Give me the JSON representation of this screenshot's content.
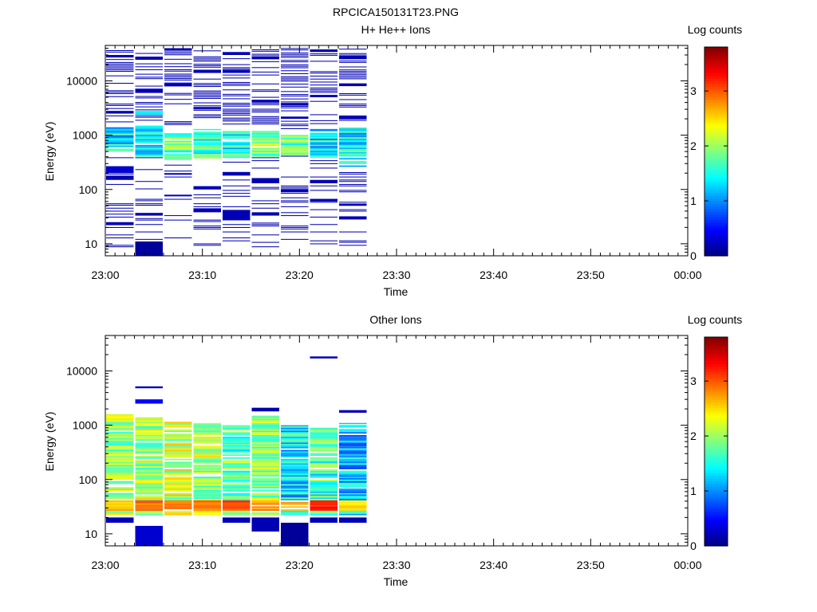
{
  "figure": {
    "title": "RPCICA150131T23.PNG"
  },
  "panels": [
    {
      "title": "H+ He++ Ions",
      "cbar_label": "Log counts"
    },
    {
      "title": "Other Ions",
      "cbar_label": "Log counts"
    }
  ],
  "chart_data": [
    {
      "type": "heatmap",
      "title": "H+ He++ Ions",
      "xlabel": "Time",
      "ylabel": "Energy (eV)",
      "x_tick_labels": [
        "23:00",
        "23:10",
        "23:20",
        "23:30",
        "23:40",
        "23:50",
        "00:00"
      ],
      "y_tick_labels": [
        "10",
        "100",
        "1000",
        "10000"
      ],
      "y_scale": "log",
      "ylim": [
        6,
        45000
      ],
      "colorbar": {
        "label": "Log counts",
        "range": [
          0,
          3.8
        ],
        "tick_labels": [
          "0",
          "1",
          "2",
          "3"
        ],
        "colormap": "jet"
      },
      "time_bins": [
        "23:00",
        "23:03",
        "23:06",
        "23:09",
        "23:12",
        "23:15",
        "23:18",
        "23:21",
        "23:24",
        "23:27"
      ],
      "columns": [
        {
          "core": [
            500,
            1400,
            1.3
          ],
          "bands": [
            [
              22,
              25,
              0.2
            ],
            [
              150,
              180,
              0.2
            ],
            [
              200,
              260,
              0.3
            ],
            [
              2500,
              2800,
              0.2
            ],
            [
              27000,
              30000,
              0.2
            ]
          ]
        },
        {
          "core": [
            400,
            1500,
            1.2
          ],
          "bands": [
            [
              6,
              11,
              0.1
            ],
            [
              33,
              37,
              0.2
            ],
            [
              2400,
              2800,
              1.4
            ],
            [
              6000,
              7000,
              0.2
            ],
            [
              25000,
              28000,
              0.2
            ]
          ]
        },
        {
          "core": [
            350,
            1100,
            1.8
          ],
          "bands": [
            [
              75,
              80,
              0.2
            ],
            [
              190,
              200,
              0.2
            ],
            [
              8000,
              9000,
              0.2
            ],
            [
              36000,
              40000,
              0.2
            ]
          ]
        },
        {
          "core": [
            350,
            1300,
            1.6
          ],
          "bands": [
            [
              38,
              45,
              0.2
            ],
            [
              100,
              115,
              0.2
            ],
            [
              3000,
              3200,
              0.2
            ],
            [
              14000,
              16000,
              0.2
            ]
          ]
        },
        {
          "core": [
            380,
            1200,
            1.5
          ],
          "bands": [
            [
              27,
              42,
              0.2
            ],
            [
              180,
              210,
              0.2
            ],
            [
              14000,
              16000,
              0.2
            ],
            [
              30000,
              34000,
              0.2
            ]
          ]
        },
        {
          "core": [
            400,
            1200,
            1.9
          ],
          "bands": [
            [
              33,
              38,
              0.2
            ],
            [
              130,
              160,
              0.2
            ],
            [
              4000,
              4500,
              0.2
            ],
            [
              25000,
              28000,
              0.2
            ]
          ]
        },
        {
          "core": [
            420,
            1050,
            1.7
          ],
          "bands": [
            [
              90,
              100,
              0.2
            ],
            [
              2000,
              2200,
              0.2
            ],
            [
              3500,
              3900,
              0.2
            ]
          ]
        },
        {
          "core": [
            380,
            1300,
            1.3
          ],
          "bands": [
            [
              60,
              65,
              0.2
            ],
            [
              130,
              150,
              0.2
            ],
            [
              5000,
              5500,
              0.2
            ],
            [
              34000,
              38000,
              0.2
            ]
          ]
        },
        {
          "core": [
            260,
            1400,
            1.4
          ],
          "bands": [
            [
              28,
              32,
              0.2
            ],
            [
              50,
              55,
              0.2
            ],
            [
              2000,
              2300,
              0.2
            ],
            [
              8000,
              9000,
              0.2
            ],
            [
              25000,
              29000,
              0.2
            ]
          ]
        }
      ]
    },
    {
      "type": "heatmap",
      "title": "Other Ions",
      "xlabel": "Time",
      "ylabel": "Energy (eV)",
      "x_tick_labels": [
        "23:00",
        "23:10",
        "23:20",
        "23:30",
        "23:40",
        "23:50",
        "00:00"
      ],
      "y_tick_labels": [
        "10",
        "100",
        "1000",
        "10000"
      ],
      "y_scale": "log",
      "ylim": [
        6,
        45000
      ],
      "colorbar": {
        "label": "Log counts",
        "range": [
          0,
          3.8
        ],
        "tick_labels": [
          "0",
          "1",
          "2",
          "3"
        ],
        "colormap": "jet"
      },
      "time_bins": [
        "23:00",
        "23:03",
        "23:06",
        "23:09",
        "23:12",
        "23:15",
        "23:18",
        "23:21",
        "23:24",
        "23:27"
      ],
      "columns": [
        {
          "core": [
            22,
            1600,
            2.0
          ],
          "peak": [
            25,
            40,
            2.8
          ],
          "bands": [
            [
              16,
              20,
              0.2
            ]
          ]
        },
        {
          "core": [
            22,
            1400,
            2.0
          ],
          "peak": [
            25,
            40,
            3.1
          ],
          "bands": [
            [
              6,
              14,
              0.3
            ],
            [
              2500,
              3000,
              0.5
            ],
            [
              4800,
              5200,
              0.2
            ]
          ]
        },
        {
          "core": [
            22,
            1300,
            2.1
          ],
          "peak": [
            25,
            40,
            3.0
          ],
          "bands": []
        },
        {
          "core": [
            22,
            1100,
            2.0
          ],
          "peak": [
            25,
            40,
            3.1
          ],
          "bands": []
        },
        {
          "core": [
            22,
            1000,
            1.7
          ],
          "peak": [
            25,
            40,
            3.3
          ],
          "bands": [
            [
              16,
              20,
              0.2
            ]
          ]
        },
        {
          "core": [
            22,
            1500,
            1.9
          ],
          "peak": [
            25,
            40,
            3.0
          ],
          "bands": [
            [
              11,
              20,
              0.2
            ],
            [
              1800,
              2100,
              0.2
            ]
          ]
        },
        {
          "core": [
            22,
            1000,
            1.3
          ],
          "peak": [
            25,
            40,
            2.9
          ],
          "bands": [
            [
              6,
              16,
              0.1
            ]
          ]
        },
        {
          "core": [
            22,
            900,
            1.6
          ],
          "peak": [
            25,
            40,
            3.4
          ],
          "bands": [
            [
              16,
              20,
              0.2
            ],
            [
              17000,
              18500,
              0.2
            ]
          ]
        },
        {
          "core": [
            22,
            1100,
            1.1
          ],
          "peak": [
            25,
            40,
            2.7
          ],
          "bands": [
            [
              16,
              20,
              0.2
            ],
            [
              1700,
              1900,
              0.2
            ]
          ]
        }
      ]
    }
  ]
}
